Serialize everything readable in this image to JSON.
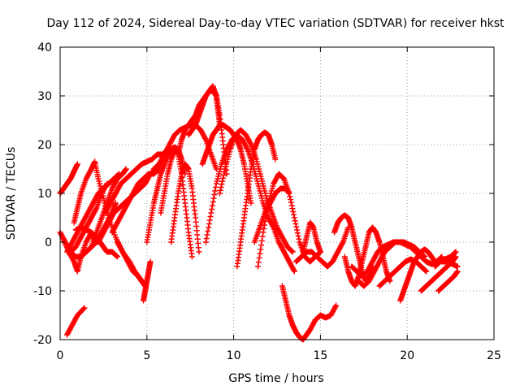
{
  "chart_data": {
    "type": "scatter",
    "title": "Day 112 of 2024, Sidereal Day-to-day VTEC variation (SDTVAR) for receiver hkst",
    "xlabel": "GPS time / hours",
    "ylabel": "SDTVAR / TECUs",
    "xlim": [
      0,
      25
    ],
    "ylim": [
      -20,
      40
    ],
    "xticks": [
      "0",
      "5",
      "10",
      "15",
      "20",
      "25"
    ],
    "yticks": [
      "-20",
      "-10",
      "0",
      "10",
      "20",
      "30",
      "40"
    ],
    "grid": true,
    "marker": "plus",
    "color": "#ff0000",
    "series": [
      {
        "name": "s01",
        "x": [
          0.0,
          0.3,
          0.6,
          0.9,
          1.2,
          1.5,
          1.8,
          2.1,
          2.4,
          2.7,
          3.0,
          3.3,
          3.6,
          3.8
        ],
        "y": [
          2,
          0,
          -2,
          -3,
          -3,
          -2,
          -1,
          2,
          5,
          8,
          11,
          13,
          14,
          15
        ]
      },
      {
        "name": "s02",
        "x": [
          0.0,
          0.2,
          0.4,
          0.6,
          0.8,
          1.0
        ],
        "y": [
          10,
          11,
          12,
          13,
          14.5,
          16
        ]
      },
      {
        "name": "s03",
        "x": [
          0.2,
          0.5,
          0.8,
          1.0,
          1.2,
          1.5,
          1.8,
          2.0
        ],
        "y": [
          0.5,
          -2,
          -4,
          -6,
          -3,
          0,
          2,
          0
        ]
      },
      {
        "name": "s04",
        "x": [
          0.4,
          0.7,
          1.0,
          1.3,
          1.6,
          1.9,
          2.2,
          2.5,
          2.8,
          3.1,
          3.4
        ],
        "y": [
          -2,
          0,
          2,
          4,
          6,
          8,
          10,
          11,
          12,
          13,
          14
        ]
      },
      {
        "name": "s05",
        "x": [
          0.4,
          0.7,
          1.0,
          1.4
        ],
        "y": [
          -19,
          -17,
          -15,
          -13.5
        ]
      },
      {
        "name": "s06",
        "x": [
          0.6,
          0.9,
          1.2,
          1.5,
          1.8,
          2.1,
          2.4,
          2.7
        ],
        "y": [
          -2,
          -1,
          1,
          3,
          5,
          7,
          10,
          12
        ]
      },
      {
        "name": "s07",
        "x": [
          0.8,
          1.0,
          1.2,
          1.5,
          1.8,
          2.0,
          2.2,
          2.5,
          2.8,
          3.2,
          3.6,
          4.0,
          4.3,
          4.5,
          4.7
        ],
        "y": [
          4,
          7,
          10,
          13,
          15,
          16.5,
          13,
          9,
          5,
          1,
          -2,
          -4,
          -6,
          -7,
          -8
        ]
      },
      {
        "name": "s08",
        "x": [
          0.9,
          1.2,
          1.5,
          1.8,
          2.1,
          2.3,
          2.5,
          2.7,
          3.0,
          3.3
        ],
        "y": [
          2.5,
          3,
          2.5,
          2,
          1,
          0,
          -1,
          -2,
          -2,
          -3
        ]
      },
      {
        "name": "s09",
        "x": [
          1.2,
          1.5,
          1.8,
          2.1,
          2.4,
          2.7,
          3.0,
          3.2
        ],
        "y": [
          -3,
          -2,
          -1,
          0,
          2,
          4,
          6,
          8
        ]
      },
      {
        "name": "s10",
        "x": [
          2.2,
          2.5,
          2.8,
          3.1,
          3.4,
          3.7,
          4.0,
          4.3,
          4.6,
          4.9,
          5.2,
          5.5,
          5.8
        ],
        "y": [
          0,
          2,
          4,
          6,
          7,
          8,
          9,
          10,
          11,
          12,
          14,
          15,
          16
        ]
      },
      {
        "name": "s11",
        "x": [
          2.6,
          2.9,
          3.2,
          3.5,
          3.8,
          4.1,
          4.4,
          4.7,
          5.0,
          5.3,
          5.6,
          5.9,
          6.2,
          6.4
        ],
        "y": [
          6,
          8,
          10,
          12,
          13,
          14,
          15,
          16,
          16.5,
          17,
          18,
          18,
          19,
          19
        ]
      },
      {
        "name": "s12",
        "x": [
          3.0,
          3.3,
          3.6,
          3.9,
          4.2,
          4.5,
          4.8,
          5.1,
          5.4,
          5.7
        ],
        "y": [
          2,
          4,
          6,
          8,
          10,
          12,
          13,
          14,
          14,
          15
        ]
      },
      {
        "name": "s13",
        "x": [
          3.3,
          3.6,
          3.9,
          4.2,
          4.5,
          4.7,
          4.9
        ],
        "y": [
          0,
          -2,
          -4,
          -6,
          -7,
          -8,
          -9
        ]
      },
      {
        "name": "s14",
        "x": [
          4.8,
          4.9,
          5.0,
          5.1,
          5.2
        ],
        "y": [
          -12,
          -10,
          -8,
          -6,
          -4
        ]
      },
      {
        "name": "s15",
        "x": [
          5.0,
          5.2,
          5.4,
          5.6,
          5.8,
          6.0,
          6.2,
          6.4,
          6.6,
          6.8,
          7.0,
          7.2
        ],
        "y": [
          0,
          4,
          8,
          11,
          14,
          16,
          18,
          19,
          19.5,
          19,
          17,
          14
        ]
      },
      {
        "name": "s16",
        "x": [
          5.4,
          5.7,
          6.0,
          6.3,
          6.6,
          6.9,
          7.2,
          7.5,
          7.8,
          8.1,
          8.4,
          8.7,
          9.0
        ],
        "y": [
          15,
          16,
          18,
          20,
          22,
          23,
          23.5,
          24,
          24,
          23,
          21,
          18,
          15
        ]
      },
      {
        "name": "s17",
        "x": [
          5.8,
          6.0,
          6.2,
          6.4,
          6.6,
          6.8,
          7.0,
          7.2,
          7.4,
          7.6
        ],
        "y": [
          6,
          10,
          14,
          17,
          19,
          18,
          14,
          8,
          2,
          -3
        ]
      },
      {
        "name": "s18",
        "x": [
          6.4,
          6.6,
          6.8,
          7.0,
          7.2,
          7.4,
          7.6,
          7.8,
          8.0
        ],
        "y": [
          0,
          5,
          10,
          14,
          16,
          15,
          11,
          5,
          -2
        ]
      },
      {
        "name": "s19",
        "x": [
          6.8,
          7.0,
          7.2,
          7.4,
          7.6,
          7.8,
          8.0,
          8.2,
          8.4,
          8.6,
          8.8,
          9.0,
          9.1,
          9.2
        ],
        "y": [
          18,
          21,
          23,
          24,
          25,
          26,
          28,
          29,
          30,
          31,
          31,
          30,
          27,
          24
        ]
      },
      {
        "name": "s20",
        "x": [
          7.4,
          7.6,
          7.8,
          8.0,
          8.2,
          8.4,
          8.6,
          8.8,
          9.0,
          9.2,
          9.4,
          9.6
        ],
        "y": [
          22,
          23,
          24,
          26,
          28,
          30,
          31,
          32,
          30,
          26,
          20,
          14
        ]
      },
      {
        "name": "s21",
        "x": [
          8.2,
          8.4,
          8.6,
          8.8,
          9.0,
          9.2,
          9.4,
          9.6,
          9.8,
          10.0,
          10.2,
          10.4,
          10.6,
          10.8,
          11.0
        ],
        "y": [
          16,
          18,
          20,
          22,
          23,
          24,
          24,
          23.5,
          23,
          22,
          21,
          19,
          16,
          12,
          8
        ]
      },
      {
        "name": "s22",
        "x": [
          8.4,
          8.7,
          9.0,
          9.3,
          9.6,
          9.9,
          10.2,
          10.5,
          10.8,
          11.1,
          11.4,
          11.7,
          12.0,
          12.3,
          12.6,
          12.9,
          13.2,
          13.5
        ],
        "y": [
          0,
          6,
          12,
          16,
          19,
          21,
          22,
          21,
          19,
          16,
          12,
          8,
          5,
          3,
          0,
          -2,
          -4,
          -6
        ]
      },
      {
        "name": "s23",
        "x": [
          9.2,
          9.5,
          9.8,
          10.1,
          10.4,
          10.7,
          11.0,
          11.3,
          11.6,
          11.9,
          12.2,
          12.5,
          12.8,
          13.1,
          13.4
        ],
        "y": [
          10,
          15,
          19,
          22,
          23,
          22,
          20,
          17,
          13,
          9,
          6,
          3,
          1,
          -1,
          -2
        ]
      },
      {
        "name": "s24",
        "x": [
          10.2,
          10.4,
          10.6,
          10.8,
          11.0,
          11.2,
          11.4,
          11.6,
          11.8,
          12.0,
          12.2,
          12.4
        ],
        "y": [
          -5,
          0,
          5,
          10,
          15,
          19,
          21,
          22,
          22.5,
          22,
          20,
          17
        ]
      },
      {
        "name": "s25",
        "x": [
          11.2,
          11.5,
          11.8,
          12.1,
          12.4,
          12.7,
          13.0,
          13.2
        ],
        "y": [
          0,
          3,
          6,
          8,
          10,
          11,
          11,
          10
        ]
      },
      {
        "name": "s26",
        "x": [
          11.4,
          11.7,
          12.0,
          12.3,
          12.6,
          12.9,
          13.2,
          13.5,
          13.8,
          14.1,
          14.4,
          14.7,
          15.0
        ],
        "y": [
          -5,
          2,
          8,
          12,
          14,
          13,
          10,
          5,
          0,
          -3,
          -4,
          -3,
          -2
        ]
      },
      {
        "name": "s27",
        "x": [
          12.8,
          13.0,
          13.2,
          13.4,
          13.6,
          13.8,
          14.0,
          14.2,
          14.4,
          14.7,
          15.0,
          15.3,
          15.6,
          15.9
        ],
        "y": [
          -9,
          -12,
          -15,
          -17,
          -18.5,
          -19.5,
          -20,
          -19,
          -18,
          -16,
          -15,
          -15.5,
          -15,
          -13
        ]
      },
      {
        "name": "s28",
        "x": [
          13.6,
          13.9,
          14.2,
          14.5,
          14.8,
          15.1,
          15.4,
          15.7,
          16.0,
          16.3,
          16.6
        ],
        "y": [
          -4,
          -3,
          -2,
          -2,
          -3,
          -4,
          -5,
          -4,
          -2,
          0,
          3
        ]
      },
      {
        "name": "s29",
        "x": [
          14.0,
          14.2,
          14.4,
          14.6,
          14.8,
          15.0
        ],
        "y": [
          -2,
          1,
          4,
          3,
          0,
          -2
        ]
      },
      {
        "name": "s30",
        "x": [
          15.8,
          16.0,
          16.2,
          16.4,
          16.6,
          16.8,
          17.0,
          17.2,
          17.4,
          17.6,
          17.8,
          18.0
        ],
        "y": [
          2,
          4,
          5,
          5.5,
          5,
          3,
          0,
          -3,
          -6,
          -8,
          -7,
          -5
        ]
      },
      {
        "name": "s31",
        "x": [
          16.4,
          16.6,
          16.8,
          17.0,
          17.2,
          17.4,
          17.6,
          17.8,
          18.0,
          18.2,
          18.4,
          18.6,
          18.8,
          19.0
        ],
        "y": [
          -3,
          -6,
          -8,
          -9,
          -7,
          -4,
          -1,
          2,
          3,
          2,
          0,
          -3,
          -6,
          -8
        ]
      },
      {
        "name": "s32",
        "x": [
          16.8,
          17.1,
          17.4,
          17.7,
          18.0,
          18.3,
          18.6,
          18.9,
          19.2,
          19.5,
          19.8,
          20.1,
          20.4,
          20.7,
          21.0
        ],
        "y": [
          -5,
          -6,
          -7,
          -6,
          -4,
          -2,
          -1,
          -0.5,
          0,
          0,
          0,
          -0.5,
          -1,
          -2,
          -3
        ]
      },
      {
        "name": "s33",
        "x": [
          17.2,
          17.5,
          17.8,
          18.1,
          18.4,
          18.7,
          19.0,
          19.3,
          19.6,
          19.9,
          20.2,
          20.5,
          20.8,
          21.1,
          21.4,
          21.7,
          22.0
        ],
        "y": [
          -8,
          -9,
          -8,
          -6,
          -4,
          -2,
          -1,
          0,
          0,
          -0.5,
          -1,
          -2,
          -3,
          -4,
          -4.5,
          -4,
          -3
        ]
      },
      {
        "name": "s34",
        "x": [
          18.4,
          18.7,
          19.0,
          19.3,
          19.6,
          19.9,
          20.2,
          20.5,
          20.8,
          21.1
        ],
        "y": [
          -9,
          -8,
          -7,
          -6,
          -5,
          -4,
          -3.5,
          -4,
          -5,
          -6
        ]
      },
      {
        "name": "s35",
        "x": [
          19.6,
          19.8,
          20.0,
          20.2,
          20.4,
          20.6,
          20.8,
          21.0,
          21.2,
          21.4,
          21.6
        ],
        "y": [
          -12,
          -10,
          -8,
          -6,
          -4,
          -3,
          -2,
          -1.5,
          -2,
          -3,
          -4
        ]
      },
      {
        "name": "s36",
        "x": [
          20.8,
          21.1,
          21.4,
          21.7,
          22.0,
          22.3,
          22.6,
          22.8
        ],
        "y": [
          -10,
          -9,
          -8,
          -7,
          -6,
          -5,
          -4,
          -3
        ]
      },
      {
        "name": "s37",
        "x": [
          21.6,
          21.9,
          22.2,
          22.5,
          22.8
        ],
        "y": [
          -5,
          -4,
          -3.5,
          -3,
          -2
        ]
      },
      {
        "name": "s38",
        "x": [
          21.8,
          22.1,
          22.4,
          22.7,
          22.9
        ],
        "y": [
          -10,
          -9,
          -8,
          -7,
          -6
        ]
      },
      {
        "name": "s39",
        "x": [
          22.0,
          22.3,
          22.6,
          22.9
        ],
        "y": [
          -4,
          -4,
          -4.5,
          -5
        ]
      }
    ]
  }
}
